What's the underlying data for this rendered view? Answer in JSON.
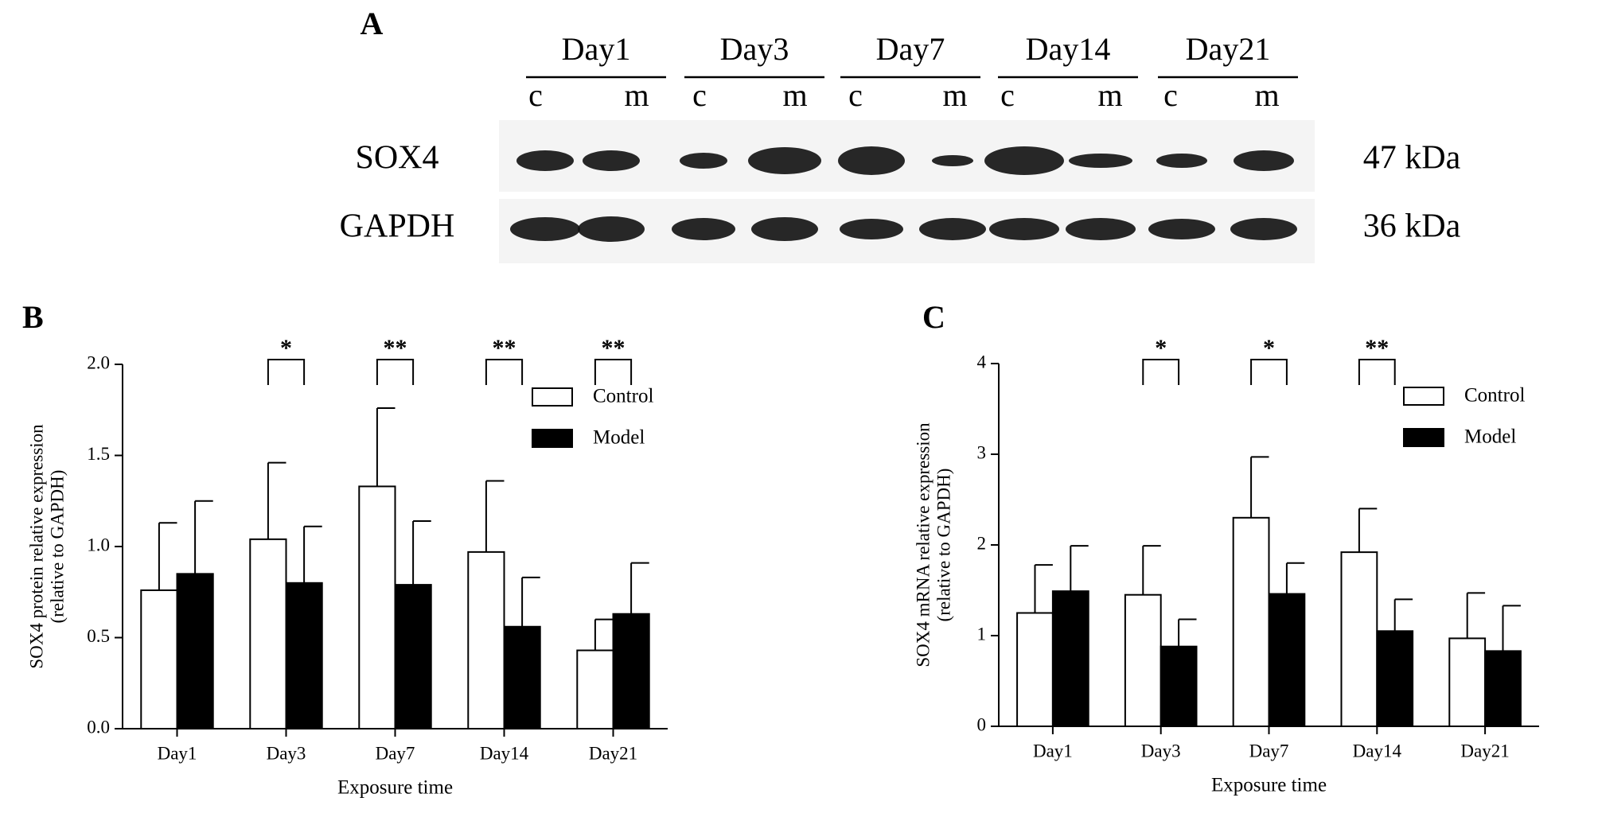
{
  "panel_a": {
    "label": "A",
    "days": [
      "Day1",
      "Day3",
      "Day7",
      "Day14",
      "Day21"
    ],
    "lanes": [
      "c",
      "m",
      "c",
      "m",
      "c",
      "m",
      "c",
      "m",
      "c",
      "m"
    ],
    "proteins": [
      {
        "name": "SOX4",
        "size": "47 kDa"
      },
      {
        "name": "GAPDH",
        "size": "36 kDa"
      }
    ]
  },
  "chart_data": [
    {
      "type": "bar",
      "label": "B",
      "ylabel": [
        "SOX4 protein relative expression",
        "(relative to GAPDH)"
      ],
      "xlabel": "Exposure time",
      "categories": [
        "Day1",
        "Day3",
        "Day7",
        "Day14",
        "Day21"
      ],
      "series": [
        {
          "name": "Control",
          "color": "#ffffff",
          "values": [
            0.76,
            1.04,
            1.33,
            0.97,
            0.43
          ],
          "errors": [
            0.37,
            0.42,
            0.43,
            0.39,
            0.17
          ]
        },
        {
          "name": "Model",
          "color": "#000000",
          "values": [
            0.85,
            0.8,
            0.79,
            0.56,
            0.63
          ],
          "errors": [
            0.4,
            0.31,
            0.35,
            0.27,
            0.28
          ]
        }
      ],
      "ylim": [
        0,
        2
      ],
      "yticks": [
        {
          "value": 0,
          "label": "0.0"
        },
        0.5,
        {
          "value": 1,
          "label": "1.0"
        },
        1.5,
        {
          "value": 2,
          "label": "2.0"
        }
      ],
      "annotations": [
        {
          "category": "Day3",
          "text": "*"
        },
        {
          "category": "Day7",
          "text": "**"
        },
        {
          "category": "Day14",
          "text": "**"
        },
        {
          "category": "Day21",
          "text": "**"
        }
      ],
      "legend": "upper right"
    },
    {
      "type": "bar",
      "label": "C",
      "ylabel": [
        "SOX4 mRNA relative expression",
        "(relative to GAPDH)"
      ],
      "xlabel": "Exposure time",
      "categories": [
        "Day1",
        "Day3",
        "Day7",
        "Day14",
        "Day21"
      ],
      "series": [
        {
          "name": "Control",
          "color": "#ffffff",
          "values": [
            1.25,
            1.45,
            2.3,
            1.92,
            0.97
          ],
          "errors": [
            0.53,
            0.54,
            0.67,
            0.48,
            0.5
          ]
        },
        {
          "name": "Model",
          "color": "#000000",
          "values": [
            1.49,
            0.88,
            1.46,
            1.05,
            0.83
          ],
          "errors": [
            0.5,
            0.3,
            0.34,
            0.35,
            0.5
          ]
        }
      ],
      "ylim": [
        0,
        4
      ],
      "yticks": [
        0,
        1,
        2,
        3,
        4
      ],
      "annotations": [
        {
          "category": "Day3",
          "text": "*"
        },
        {
          "category": "Day7",
          "text": "*"
        },
        {
          "category": "Day14",
          "text": "**"
        }
      ],
      "legend": "upper right"
    }
  ]
}
